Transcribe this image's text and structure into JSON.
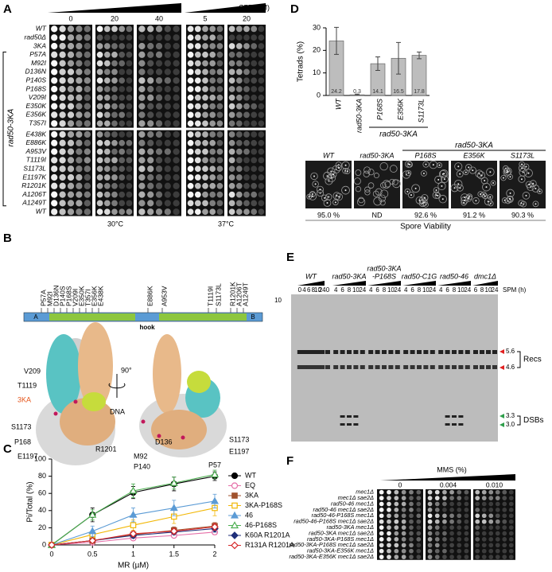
{
  "panel_a": {
    "label": "A",
    "dose_label": "CPT (µM)",
    "doses": [
      "0",
      "20",
      "40",
      "5",
      "20"
    ],
    "strains": [
      "WT",
      "rad50Δ",
      "3KA",
      "P57A",
      "M92I",
      "D136N",
      "P140S",
      "P168S",
      "V209I",
      "E350K",
      "E356K",
      "T357I",
      "E438K",
      "E886K",
      "A953V",
      "T1119I",
      "S1173L",
      "E1197K",
      "R1201K",
      "A1206T",
      "A1249T",
      "WT"
    ],
    "group_label": "rad50-3KA",
    "temperatures": [
      "30°C",
      "37°C"
    ]
  },
  "panel_b": {
    "label": "B",
    "mutations": [
      "P57A",
      "M92I",
      "D136N",
      "P140S",
      "P168S",
      "V209I",
      "E350K",
      "T357I",
      "E356K",
      "E438K",
      "E886K",
      "A953V",
      "T1119I",
      "S1173L",
      "R1201K",
      "A1206T",
      "A1249T"
    ],
    "domains": [
      "A",
      "hook",
      "B"
    ],
    "structure_labels": [
      "V209",
      "T1119",
      "3KA",
      "S1173",
      "P168",
      "E1197",
      "DNA",
      "R1201",
      "D136",
      "M92",
      "P140",
      "P57",
      "S1173",
      "E1197"
    ],
    "rotation": "90°"
  },
  "chart_data": [
    {
      "type": "line",
      "panel_label": "C",
      "xlabel": "MR (µM)",
      "ylabel": "Pi/Total (%)",
      "x": [
        0,
        0.5,
        1,
        1.5,
        2
      ],
      "xlim": [
        0,
        2
      ],
      "xticks": [
        0,
        0.5,
        1,
        1.5,
        2
      ],
      "ylim": [
        0,
        100
      ],
      "yticks": [
        0,
        20,
        40,
        60,
        80,
        100
      ],
      "series": [
        {
          "name": "WT",
          "color": "#000000",
          "marker": "circle",
          "filled": true,
          "values": [
            0,
            35,
            61,
            71,
            80
          ],
          "errors": [
            0,
            8,
            7,
            8,
            5
          ]
        },
        {
          "name": "EQ",
          "color": "#e66fa8",
          "marker": "circle",
          "filled": false,
          "values": [
            0,
            3,
            8,
            11,
            15
          ],
          "errors": [
            0,
            1,
            2,
            2,
            3
          ]
        },
        {
          "name": "3KA",
          "color": "#a0522d",
          "marker": "square",
          "filled": true,
          "values": [
            0,
            5,
            12,
            17,
            22
          ],
          "errors": [
            0,
            2,
            3,
            4,
            4
          ]
        },
        {
          "name": "3KA-P168S",
          "color": "#f2b705",
          "marker": "square",
          "filled": false,
          "values": [
            0,
            12,
            23,
            33,
            43
          ],
          "errors": [
            0,
            4,
            6,
            8,
            9
          ]
        },
        {
          "name": "46",
          "color": "#5b9bd5",
          "marker": "triangle",
          "filled": true,
          "values": [
            0,
            16,
            35,
            43,
            51
          ],
          "errors": [
            0,
            6,
            8,
            9,
            8
          ]
        },
        {
          "name": "46-P168S",
          "color": "#4caf50",
          "marker": "triangle",
          "filled": false,
          "values": [
            0,
            35,
            63,
            72,
            82
          ],
          "errors": [
            0,
            6,
            8,
            7,
            5
          ]
        },
        {
          "name": "K60A R1201A",
          "color": "#1f2f7a",
          "marker": "diamond",
          "filled": true,
          "values": [
            0,
            5,
            11,
            15,
            19
          ],
          "errors": [
            0,
            2,
            3,
            3,
            4
          ]
        },
        {
          "name": "R131A R1201A",
          "color": "#d62728",
          "marker": "diamond",
          "filled": false,
          "values": [
            0,
            5,
            13,
            16,
            21
          ],
          "errors": [
            0,
            2,
            3,
            3,
            4
          ]
        }
      ]
    },
    {
      "type": "bar",
      "panel_label": "D",
      "ylabel": "Tetrads (%)",
      "categories": [
        "WT",
        "rad50-3KA",
        "P168S",
        "E356K",
        "S1173L"
      ],
      "values": [
        24.2,
        0.3,
        14.1,
        16.5,
        17.8
      ],
      "errors": [
        6,
        0.3,
        3,
        7,
        1.5
      ],
      "color": "#bdbdbd",
      "ylim": [
        0,
        30
      ],
      "yticks": [
        0,
        10,
        20,
        30
      ],
      "group_label": "rad50-3KA"
    }
  ],
  "panel_d": {
    "images": [
      "WT",
      "rad50-3KA",
      "P168S",
      "E356K",
      "S1173L"
    ],
    "group_label": "rad50-3KA",
    "viability": [
      "95.0 %",
      "ND",
      "92.6 %",
      "91.2 %",
      "90.3 %"
    ],
    "caption": "Spore Viability"
  },
  "panel_e": {
    "label": "E",
    "groups": [
      {
        "name": [
          "WT"
        ],
        "times": [
          "0",
          "4",
          "6",
          "8",
          "10",
          "24"
        ]
      },
      {
        "name": [
          "rad50-3KA"
        ],
        "times": [
          "4",
          "6",
          "8",
          "10",
          "24"
        ]
      },
      {
        "name": [
          "rad50-3KA",
          "-P168S"
        ],
        "times": [
          "4",
          "6",
          "8",
          "10",
          "24"
        ]
      },
      {
        "name": [
          "rad50-C1G"
        ],
        "times": [
          "4",
          "6",
          "8",
          "10",
          "24"
        ]
      },
      {
        "name": [
          "rad50-46"
        ],
        "times": [
          "4",
          "6",
          "8",
          "10",
          "24"
        ]
      },
      {
        "name": [
          "dmc1Δ"
        ],
        "times": [
          "6",
          "8",
          "10",
          "24"
        ]
      }
    ],
    "first_time": "0",
    "time_unit": "SPM (h)",
    "marker": "10",
    "bands": [
      "5.6",
      "4.6",
      "3.3",
      "3.0"
    ],
    "band_groups": [
      "Recs",
      "DSBs"
    ]
  },
  "panel_f": {
    "label": "F",
    "dose_label": "MMS (%)",
    "doses": [
      "0",
      "0.004",
      "0.010"
    ],
    "strains": [
      "mec1Δ",
      "mec1Δ sae2Δ",
      "rad50-46 mec1Δ",
      "rad50-46 mec1Δ sae2Δ",
      "rad50-46-P168S mec1Δ",
      "rad50-46-P168S mec1Δ sae2Δ",
      "rad50-3KA mec1Δ",
      "rad50-3KA mec1Δ sae2Δ",
      "rad50-3KA-P168S mec1Δ",
      "rad50-3KA-P168S mec1Δ sae2Δ",
      "rad50-3KA-E356K mec1Δ",
      "rad50-3KA-E356K mec1Δ sae2Δ"
    ]
  }
}
